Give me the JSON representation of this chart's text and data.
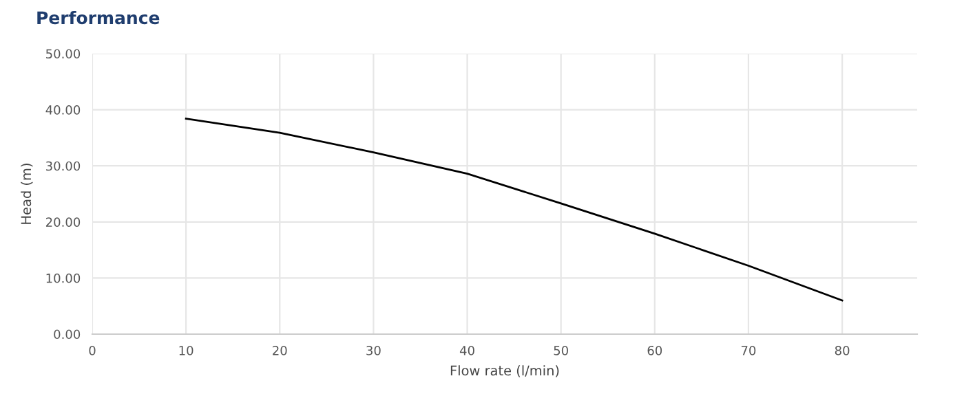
{
  "chart_data": {
    "type": "line",
    "title": "Performance",
    "xlabel": "Flow rate (l/min)",
    "ylabel": "Head (m)",
    "x": [
      10,
      20,
      30,
      40,
      50,
      60,
      70,
      80
    ],
    "series": [
      {
        "color": "#000000",
        "values": [
          38.4,
          35.9,
          32.4,
          28.6,
          23.3,
          17.9,
          12.2,
          6.0
        ]
      }
    ],
    "xlim": [
      0,
      88
    ],
    "xticks": [
      0,
      10,
      20,
      30,
      40,
      50,
      60,
      70,
      80
    ],
    "ylim": [
      0,
      50
    ],
    "yticks": [
      {
        "value": 0,
        "label": "0.00"
      },
      {
        "value": 10,
        "label": "10.00"
      },
      {
        "value": 20,
        "label": "20.00"
      },
      {
        "value": 30,
        "label": "30.00"
      },
      {
        "value": 40,
        "label": "40.00"
      },
      {
        "value": 50,
        "label": "50.00"
      }
    ],
    "grid": true,
    "legend": false
  }
}
